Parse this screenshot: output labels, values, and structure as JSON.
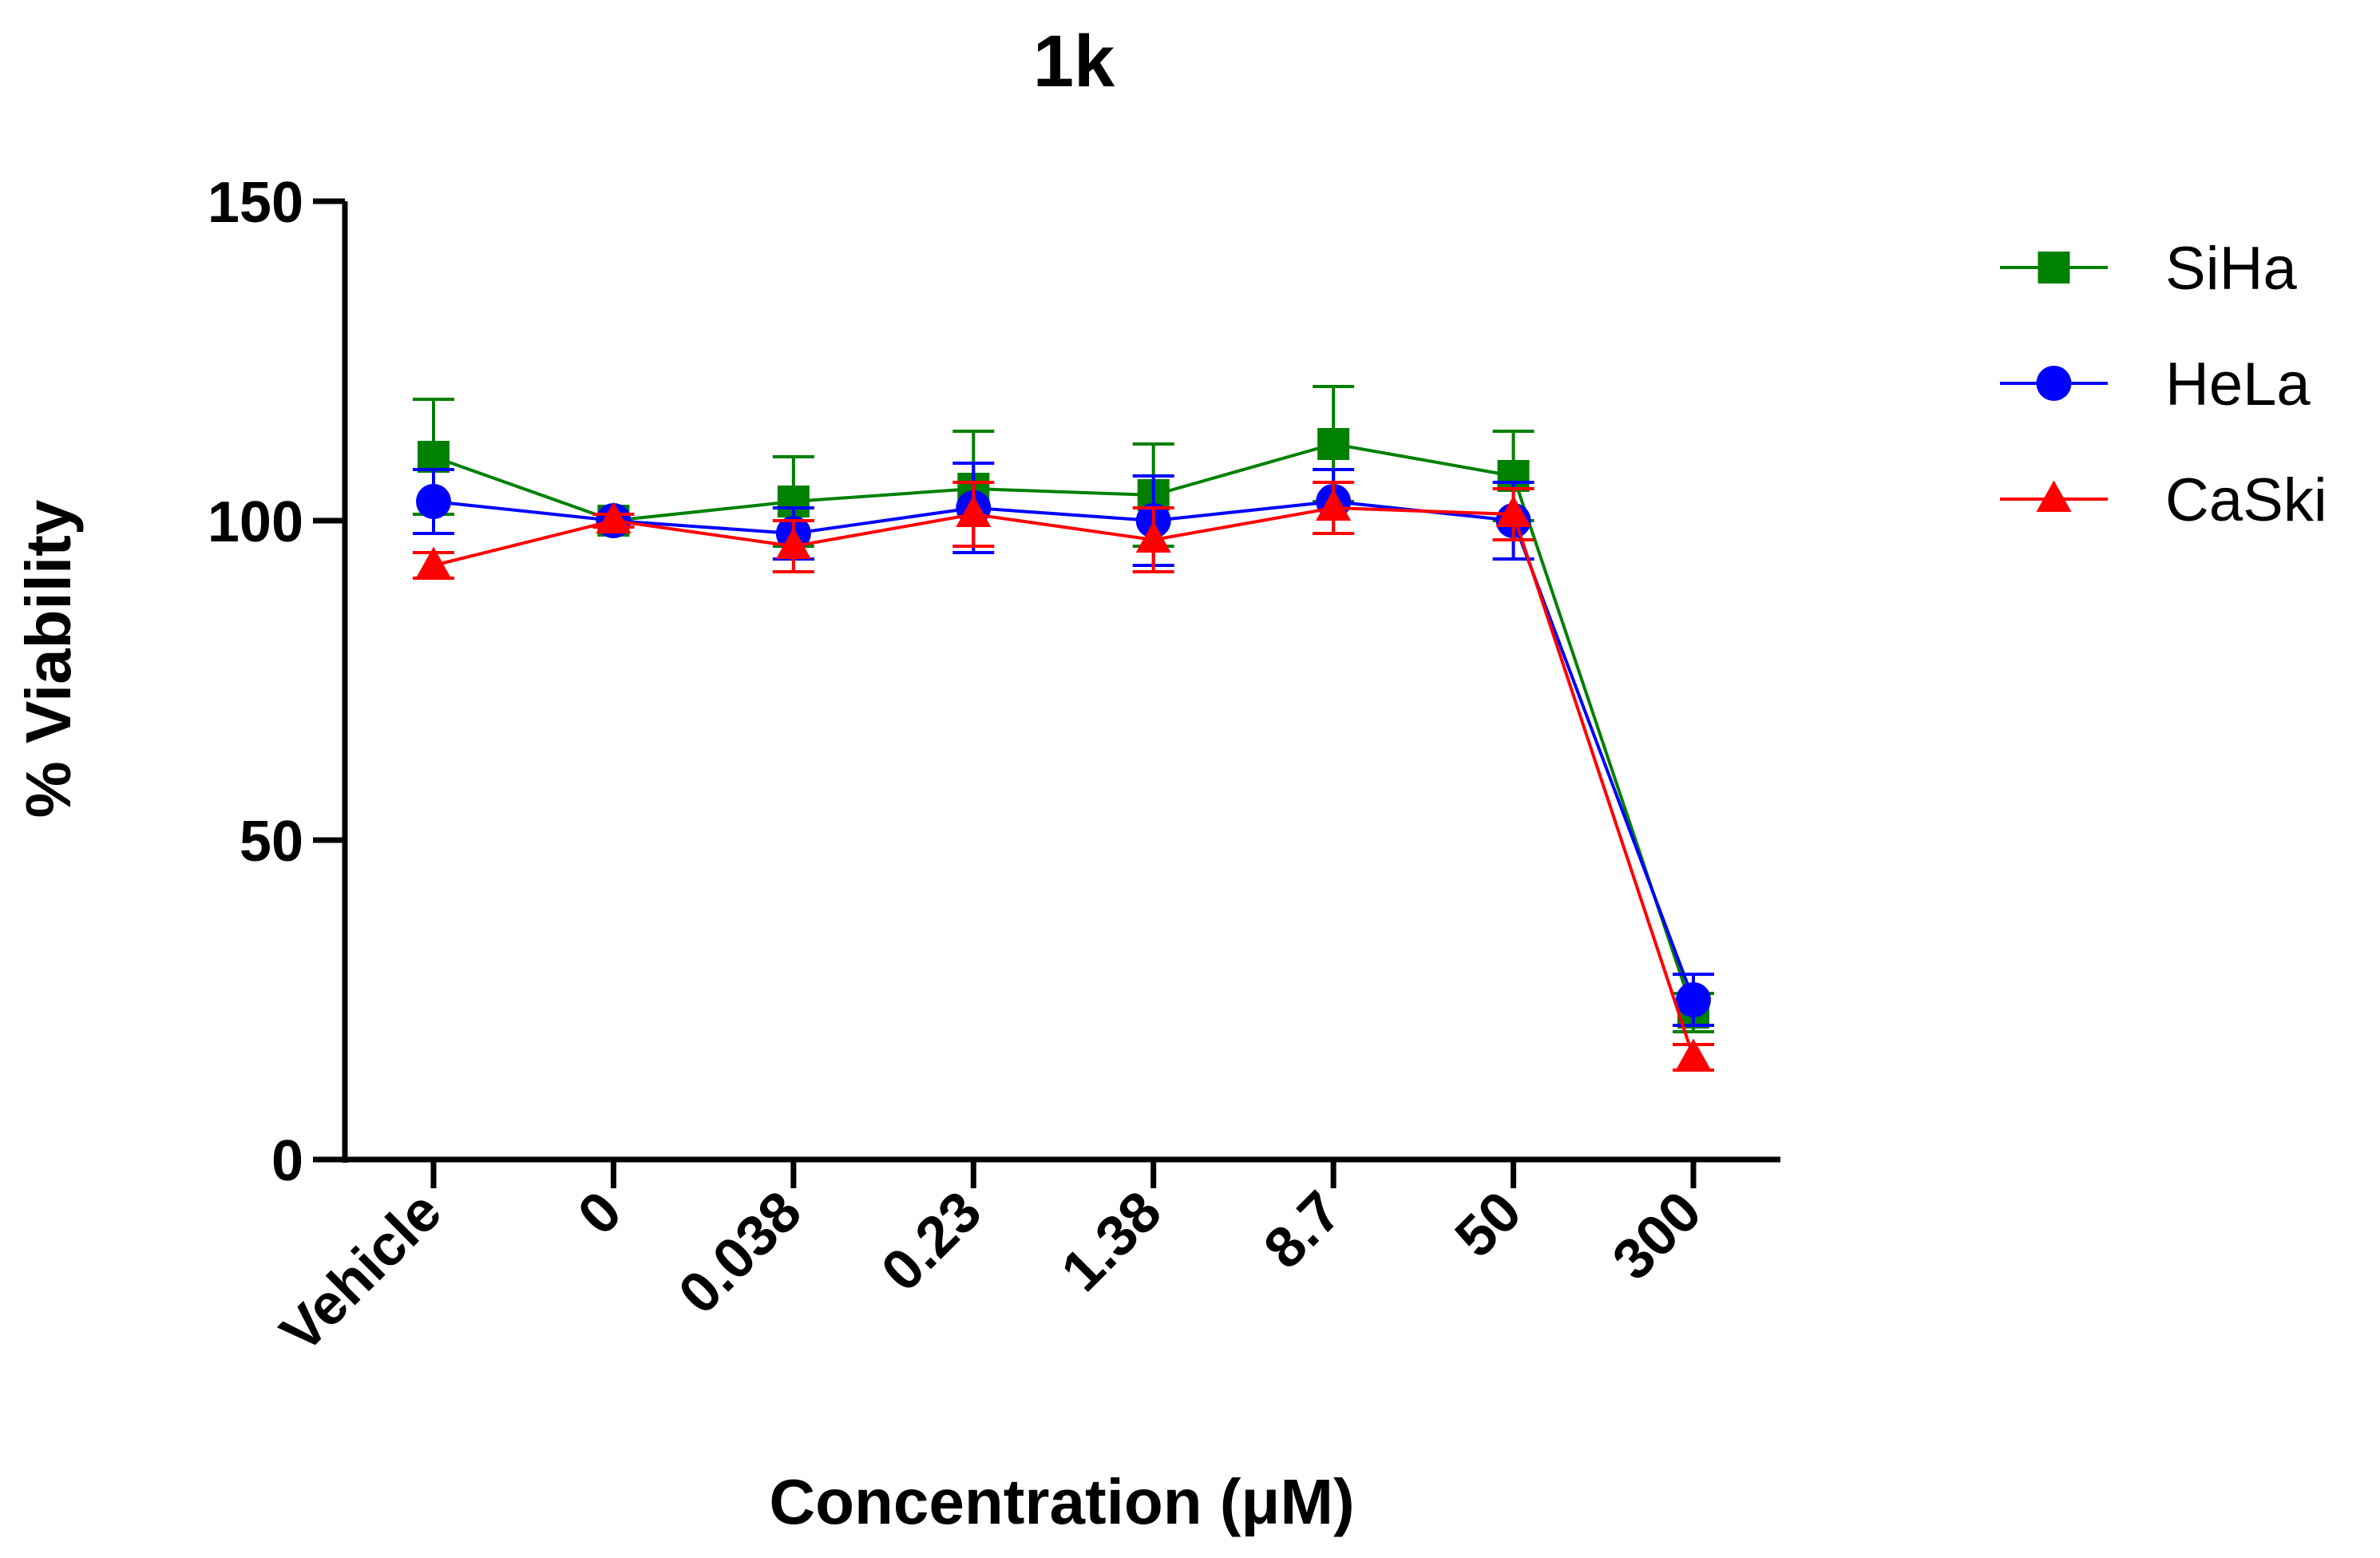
{
  "chart_data": {
    "type": "line",
    "title": "1k",
    "xlabel": "Concentration (μM)",
    "ylabel": "% Viability",
    "categories": [
      "Vehicle",
      "0",
      "0.038",
      "0.23",
      "1.38",
      "8.7",
      "50",
      "300"
    ],
    "ylim": [
      0,
      150
    ],
    "yticks": [
      0,
      50,
      100,
      150
    ],
    "grid": false,
    "legend_position": "top-right",
    "series": [
      {
        "name": "SiHa",
        "color": "#008000",
        "marker": "square",
        "values": [
          110,
          100,
          103,
          105,
          104,
          112,
          107,
          23
        ],
        "errors": [
          9,
          1,
          7,
          9,
          8,
          9,
          7,
          3
        ]
      },
      {
        "name": "HeLa",
        "color": "#0000ff",
        "marker": "circle",
        "values": [
          103,
          100,
          98,
          102,
          100,
          103,
          100,
          25
        ],
        "errors": [
          5,
          1,
          4,
          7,
          7,
          5,
          6,
          4
        ]
      },
      {
        "name": "CaSki",
        "color": "#ff0000",
        "marker": "triangle",
        "values": [
          93,
          100,
          96,
          101,
          97,
          102,
          101,
          16
        ],
        "errors": [
          2,
          1,
          4,
          5,
          5,
          4,
          4,
          2
        ]
      }
    ]
  }
}
